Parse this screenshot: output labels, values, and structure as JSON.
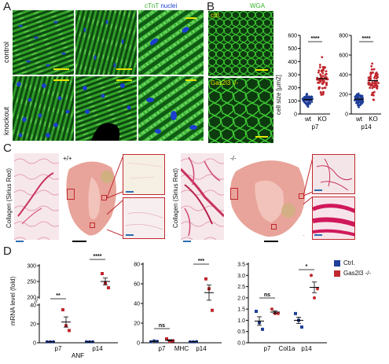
{
  "panels": {
    "a": {
      "letter": "A",
      "legend_cTnT": "cTnT",
      "legend_nuclei": "nuclei",
      "row_control": "control",
      "row_knockout": "knockout"
    },
    "b": {
      "letter": "B",
      "legend": "WGA",
      "label_ctrl": "ctrl.",
      "label_ko": "Gas2l3 -/-"
    },
    "c": {
      "letter": "C",
      "wt_label": "+/+",
      "ko_label": "-/-",
      "collagen_label": "Collagen (Sirius Red)"
    },
    "d": {
      "letter": "D",
      "legend_ctrl": "Ctrl.",
      "legend_ko": "Gas2l3 -/-"
    }
  },
  "colors": {
    "ctrl": "#1f3f99",
    "ko": "#c0282e",
    "wga": "#38b02a",
    "nuclei": "#1a3fd0",
    "sirius": "#d24a7a",
    "label_yellow": "#e6e600",
    "label_green": "#38b02a"
  },
  "chart_data": [
    {
      "type": "scatter",
      "panel": "B-p7",
      "ylabel": "cell size [µm2]",
      "ylim": [
        0,
        600
      ],
      "yticks": [
        "0",
        "100",
        "200",
        "300",
        "400",
        "500",
        "600"
      ],
      "categories": [
        "wt",
        "KO"
      ],
      "group_label": "p7",
      "significance": "****",
      "series": [
        {
          "name": "wt",
          "mean": 110,
          "spread": 30
        },
        {
          "name": "KO",
          "mean": 270,
          "spread": 90
        }
      ]
    },
    {
      "type": "scatter",
      "panel": "B-p14",
      "ylim": [
        0,
        800
      ],
      "yticks": [
        "0",
        "200",
        "400",
        "600",
        "800"
      ],
      "categories": [
        "wt",
        "KO"
      ],
      "group_label": "p14",
      "significance": "****",
      "series": [
        {
          "name": "wt",
          "mean": 150,
          "spread": 45
        },
        {
          "name": "KO",
          "mean": 340,
          "spread": 120
        }
      ]
    },
    {
      "type": "scatter",
      "panel": "D-ANF",
      "ylabel": "mRNA level (fold)",
      "gene": "ANF",
      "groups": [
        "p7",
        "p14"
      ],
      "yticks_lower": [
        "0",
        "20",
        "40"
      ],
      "yticks_upper": [
        "200",
        "250",
        "300"
      ],
      "significance": [
        "**",
        "****"
      ],
      "series": [
        {
          "name": "Ctrl.",
          "p7": [
            1,
            1,
            1
          ],
          "p14": [
            1,
            1,
            1
          ]
        },
        {
          "name": "Gas2l3 -/-",
          "p7": [
            35,
            18,
            13
          ],
          "p14": [
            275,
            245,
            230
          ]
        }
      ]
    },
    {
      "type": "scatter",
      "panel": "D-MHC",
      "gene": "MHC",
      "groups": [
        "p7",
        "p14"
      ],
      "yticks": [
        "0",
        "20",
        "40",
        "60",
        "80"
      ],
      "significance": [
        "ns",
        "***"
      ],
      "series": [
        {
          "name": "Ctrl.",
          "p7": [
            1,
            2,
            1.5
          ],
          "p14": [
            1,
            1,
            1.2
          ]
        },
        {
          "name": "Gas2l3 -/-",
          "p7": [
            4,
            1.5,
            2
          ],
          "p14": [
            65,
            55,
            33
          ]
        }
      ]
    },
    {
      "type": "scatter",
      "panel": "D-Col1a",
      "gene": "Col1a",
      "groups": [
        "p7",
        "p14"
      ],
      "yticks": [
        "0.0",
        "0.5",
        "1.0",
        "1.5",
        "2.0",
        "2.5",
        "3.0",
        "3.5"
      ],
      "significance": [
        "ns",
        "*"
      ],
      "series": [
        {
          "name": "Ctrl.",
          "p7": [
            1.4,
            0.9,
            0.6
          ],
          "p14": [
            1.3,
            1.0,
            0.7
          ]
        },
        {
          "name": "Gas2l3 -/-",
          "p7": [
            1.5,
            1.3,
            1.3
          ],
          "p14": [
            3.0,
            2.0,
            2.4
          ]
        }
      ]
    }
  ]
}
